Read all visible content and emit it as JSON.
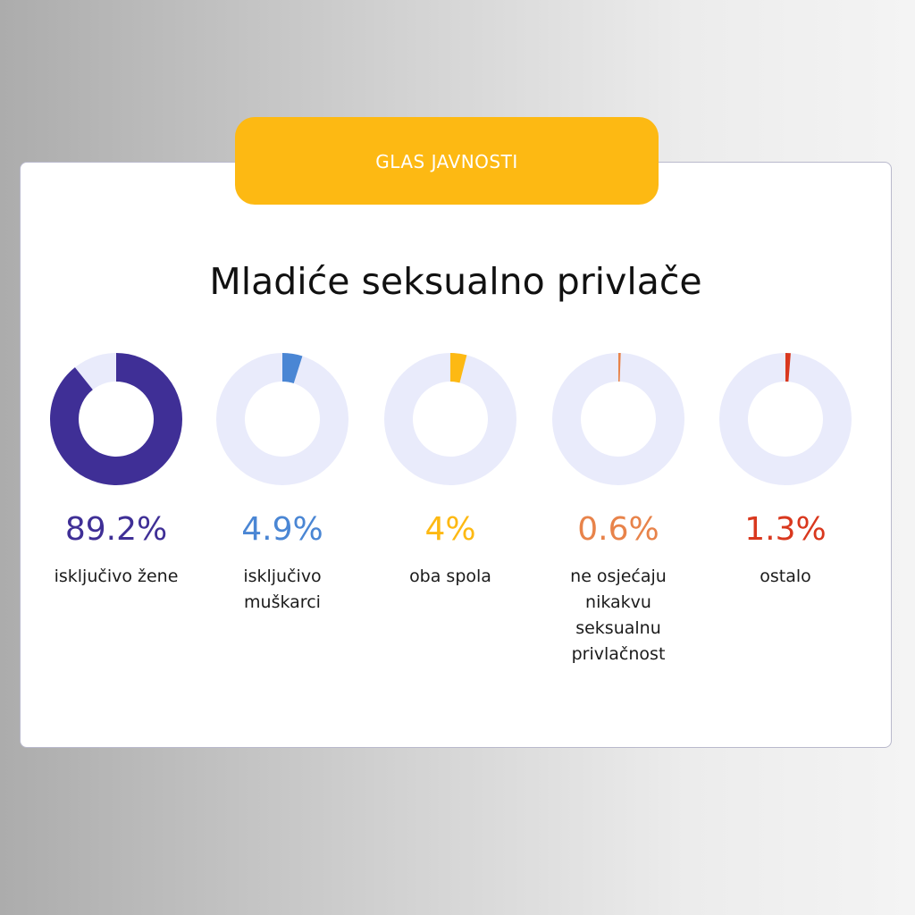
{
  "header": {
    "banner_label": "GLAS JAVNOSTI"
  },
  "chart_data": {
    "type": "pie",
    "title": "Mladiće seksualno privlače",
    "track_color": "#e9ebfb",
    "items": [
      {
        "label": "isključivo žene",
        "value": 89.2,
        "display": "89.2%",
        "color": "#3f2f96"
      },
      {
        "label": "isključivo muškarci",
        "value": 4.9,
        "display": "4.9%",
        "color": "#4a86d4"
      },
      {
        "label": "oba spola",
        "value": 4,
        "display": "4%",
        "color": "#fdb913"
      },
      {
        "label": "ne osjećaju nikakvu seksualnu privlačnost",
        "value": 0.6,
        "display": "0.6%",
        "color": "#e8834a"
      },
      {
        "label": "ostalo",
        "value": 1.3,
        "display": "1.3%",
        "color": "#d9381e"
      }
    ]
  }
}
